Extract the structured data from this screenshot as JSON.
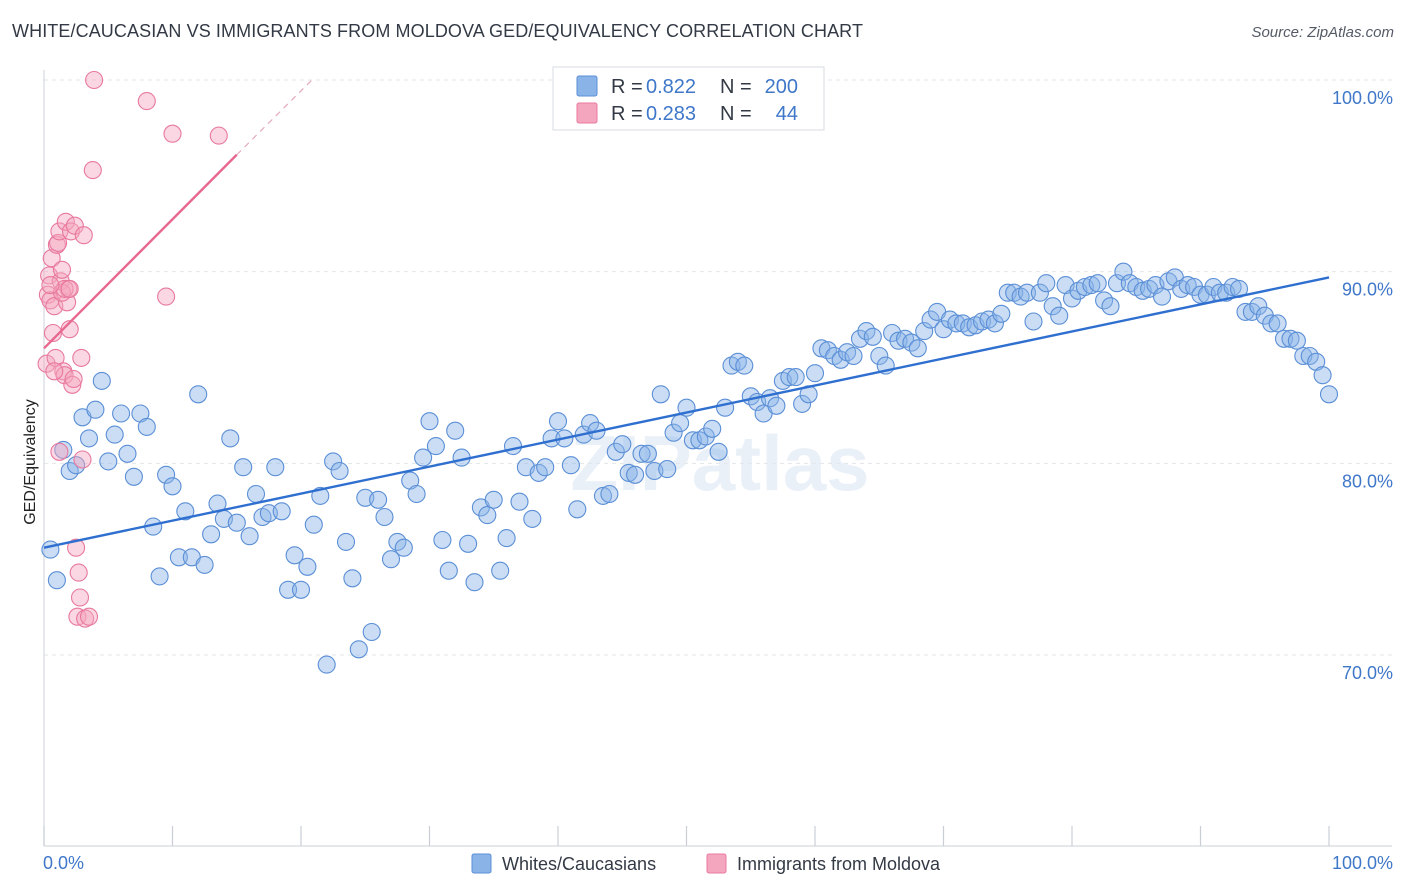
{
  "title": "WHITE/CAUCASIAN VS IMMIGRANTS FROM MOLDOVA GED/EQUIVALENCY CORRELATION CHART",
  "source": "Source: ZipAtlas.com",
  "watermark": "ZIPatlas",
  "legend": {
    "rows": [
      {
        "r_label": "R =",
        "r_value": "0.822",
        "n_label": "N =",
        "n_value": "200",
        "color": "#8ab4e8"
      },
      {
        "r_label": "R =",
        "r_value": "0.283",
        "n_label": "N =",
        "n_value": "44",
        "color": "#f4a6bf"
      }
    ]
  },
  "bottom_legend": {
    "items": [
      {
        "label": "Whites/Caucasians",
        "color": "#8ab4e8"
      },
      {
        "label": "Immigrants from Moldova",
        "color": "#f4a6bf"
      }
    ]
  },
  "chart_data": {
    "type": "scatter",
    "title": "WHITE/CAUCASIAN VS IMMIGRANTS FROM MOLDOVA GED/EQUIVALENCY CORRELATION CHART",
    "xlabel": "",
    "ylabel": "GED/Equivalency",
    "x_tick_labels": {
      "left": "0.0%",
      "right": "100.0%"
    },
    "y_tick_labels": [
      "100.0%",
      "90.0%",
      "80.0%",
      "70.0%"
    ],
    "y_ticks": [
      100,
      90,
      80,
      70
    ],
    "xlim": [
      0,
      100
    ],
    "ylim": [
      60.5,
      101.5
    ],
    "series": [
      {
        "name": "Whites/Caucasians",
        "color": "#8ab4e8",
        "stroke": "#5b8fd6",
        "trend": {
          "x": [
            0,
            100
          ],
          "y": [
            75.6,
            89.7
          ],
          "color": "#2f6fcf"
        },
        "points": [
          [
            0.5,
            75.5
          ],
          [
            1,
            73.9
          ],
          [
            1.5,
            80.7
          ],
          [
            2,
            79.6
          ],
          [
            2.5,
            79.9
          ],
          [
            3,
            82.4
          ],
          [
            3.5,
            81.3
          ],
          [
            4,
            82.8
          ],
          [
            4.5,
            84.3
          ],
          [
            5,
            80.1
          ],
          [
            5.5,
            81.5
          ],
          [
            6,
            82.6
          ],
          [
            6.5,
            80.5
          ],
          [
            7,
            79.3
          ],
          [
            7.5,
            82.6
          ],
          [
            8,
            81.9
          ],
          [
            8.5,
            76.7
          ],
          [
            9,
            74.1
          ],
          [
            9.5,
            79.4
          ],
          [
            10,
            78.8
          ],
          [
            10.5,
            75.1
          ],
          [
            11,
            77.5
          ],
          [
            11.5,
            75.1
          ],
          [
            12,
            83.6
          ],
          [
            12.5,
            74.7
          ],
          [
            13,
            76.3
          ],
          [
            13.5,
            77.9
          ],
          [
            14,
            77.1
          ],
          [
            14.5,
            81.3
          ],
          [
            15,
            76.9
          ],
          [
            15.5,
            79.8
          ],
          [
            16,
            76.2
          ],
          [
            16.5,
            78.4
          ],
          [
            17,
            77.2
          ],
          [
            17.5,
            77.4
          ],
          [
            18,
            79.8
          ],
          [
            18.5,
            77.5
          ],
          [
            19,
            73.4
          ],
          [
            19.5,
            75.2
          ],
          [
            20,
            73.4
          ],
          [
            20.5,
            74.6
          ],
          [
            21,
            76.8
          ],
          [
            21.5,
            78.3
          ],
          [
            22,
            69.5
          ],
          [
            22.5,
            80.1
          ],
          [
            23,
            79.6
          ],
          [
            23.5,
            75.9
          ],
          [
            24,
            74
          ],
          [
            24.5,
            70.3
          ],
          [
            25,
            78.2
          ],
          [
            25.5,
            71.2
          ],
          [
            26,
            78.1
          ],
          [
            26.5,
            77.2
          ],
          [
            27,
            75
          ],
          [
            27.5,
            75.9
          ],
          [
            28,
            75.6
          ],
          [
            28.5,
            79.1
          ],
          [
            29,
            78.4
          ],
          [
            29.5,
            80.3
          ],
          [
            30,
            82.2
          ],
          [
            30.5,
            80.9
          ],
          [
            31,
            76
          ],
          [
            31.5,
            74.4
          ],
          [
            32,
            81.7
          ],
          [
            32.5,
            80.3
          ],
          [
            33,
            75.8
          ],
          [
            33.5,
            73.8
          ],
          [
            34,
            77.7
          ],
          [
            34.5,
            77.3
          ],
          [
            35,
            78.1
          ],
          [
            35.5,
            74.4
          ],
          [
            36,
            76.1
          ],
          [
            36.5,
            80.9
          ],
          [
            37,
            78
          ],
          [
            37.5,
            79.8
          ],
          [
            38,
            77.1
          ],
          [
            38.5,
            79.5
          ],
          [
            39,
            79.8
          ],
          [
            39.5,
            81.3
          ],
          [
            40,
            82.2
          ],
          [
            40.5,
            81.3
          ],
          [
            41,
            79.9
          ],
          [
            41.5,
            77.6
          ],
          [
            42,
            81.5
          ],
          [
            42.5,
            82.1
          ],
          [
            43,
            81.7
          ],
          [
            43.5,
            78.3
          ],
          [
            44,
            78.4
          ],
          [
            44.5,
            80.6
          ],
          [
            45,
            81
          ],
          [
            45.5,
            79.5
          ],
          [
            46,
            79.4
          ],
          [
            46.5,
            80.5
          ],
          [
            47,
            80.5
          ],
          [
            47.5,
            79.6
          ],
          [
            48,
            83.6
          ],
          [
            48.5,
            79.7
          ],
          [
            49,
            81.6
          ],
          [
            49.5,
            82.1
          ],
          [
            50,
            82.9
          ],
          [
            50.5,
            81.2
          ],
          [
            51,
            81.2
          ],
          [
            51.5,
            81.4
          ],
          [
            52,
            81.8
          ],
          [
            52.5,
            80.6
          ],
          [
            53,
            82.9
          ],
          [
            53.5,
            85.1
          ],
          [
            54,
            85.3
          ],
          [
            54.5,
            85.1
          ],
          [
            55,
            83.5
          ],
          [
            55.5,
            83.2
          ],
          [
            56,
            82.6
          ],
          [
            56.5,
            83.4
          ],
          [
            57,
            83
          ],
          [
            57.5,
            84.3
          ],
          [
            58,
            84.5
          ],
          [
            58.5,
            84.5
          ],
          [
            59,
            83.1
          ],
          [
            59.5,
            83.6
          ],
          [
            60,
            84.7
          ],
          [
            60.5,
            86
          ],
          [
            61,
            85.9
          ],
          [
            61.5,
            85.6
          ],
          [
            62,
            85.4
          ],
          [
            62.5,
            85.8
          ],
          [
            63,
            85.6
          ],
          [
            63.5,
            86.5
          ],
          [
            64,
            86.9
          ],
          [
            64.5,
            86.6
          ],
          [
            65,
            85.6
          ],
          [
            65.5,
            85.1
          ],
          [
            66,
            86.8
          ],
          [
            66.5,
            86.4
          ],
          [
            67,
            86.5
          ],
          [
            67.5,
            86.3
          ],
          [
            68,
            86
          ],
          [
            68.5,
            86.9
          ],
          [
            69,
            87.5
          ],
          [
            69.5,
            87.9
          ],
          [
            70,
            87
          ],
          [
            70.5,
            87.5
          ],
          [
            71,
            87.3
          ],
          [
            71.5,
            87.3
          ],
          [
            72,
            87.1
          ],
          [
            72.5,
            87.2
          ],
          [
            73,
            87.4
          ],
          [
            73.5,
            87.5
          ],
          [
            74,
            87.3
          ],
          [
            74.5,
            87.8
          ],
          [
            75,
            88.9
          ],
          [
            75.5,
            88.9
          ],
          [
            76,
            88.7
          ],
          [
            76.5,
            88.9
          ],
          [
            77,
            87.4
          ],
          [
            77.5,
            88.9
          ],
          [
            78,
            89.4
          ],
          [
            78.5,
            88.2
          ],
          [
            79,
            87.7
          ],
          [
            79.5,
            89.3
          ],
          [
            80,
            88.6
          ],
          [
            80.5,
            89
          ],
          [
            81,
            89.2
          ],
          [
            81.5,
            89.3
          ],
          [
            82,
            89.4
          ],
          [
            82.5,
            88.5
          ],
          [
            83,
            88.2
          ],
          [
            83.5,
            89.4
          ],
          [
            84,
            90
          ],
          [
            84.5,
            89.4
          ],
          [
            85,
            89.2
          ],
          [
            85.5,
            89
          ],
          [
            86,
            89.1
          ],
          [
            86.5,
            89.3
          ],
          [
            87,
            88.7
          ],
          [
            87.5,
            89.5
          ],
          [
            88,
            89.7
          ],
          [
            88.5,
            89.1
          ],
          [
            89,
            89.3
          ],
          [
            89.5,
            89.2
          ],
          [
            90,
            88.8
          ],
          [
            90.5,
            88.8
          ],
          [
            91,
            89.2
          ],
          [
            91.5,
            88.9
          ],
          [
            92,
            88.9
          ],
          [
            92.5,
            89.2
          ],
          [
            93,
            89.1
          ],
          [
            93.5,
            87.9
          ],
          [
            94,
            87.9
          ],
          [
            94.5,
            88.2
          ],
          [
            95,
            87.7
          ],
          [
            95.5,
            87.3
          ],
          [
            96,
            87.3
          ],
          [
            96.5,
            86.5
          ],
          [
            97,
            86.5
          ],
          [
            97.5,
            86.4
          ],
          [
            98,
            85.6
          ],
          [
            98.5,
            85.6
          ],
          [
            99,
            85.3
          ],
          [
            99.5,
            84.6
          ],
          [
            100,
            83.6
          ]
        ]
      },
      {
        "name": "Immigrants from Moldova",
        "color": "#f4a6bf",
        "stroke": "#e8799e",
        "trend": {
          "x": [
            0,
            15
          ],
          "y": [
            86,
            96.1
          ],
          "dash_to": {
            "x": 21,
            "y": 100.1
          },
          "color": "#e8678f"
        },
        "points": [
          [
            0.2,
            85.2
          ],
          [
            0.3,
            88.8
          ],
          [
            0.4,
            89.8
          ],
          [
            0.5,
            88.5
          ],
          [
            0.6,
            90.7
          ],
          [
            0.7,
            86.8
          ],
          [
            0.8,
            88.2
          ],
          [
            0.9,
            85.5
          ],
          [
            1,
            91.4
          ],
          [
            1.1,
            91.5
          ],
          [
            1.2,
            92.1
          ],
          [
            1.3,
            89.5
          ],
          [
            1.4,
            90.1
          ],
          [
            1.5,
            84.8
          ],
          [
            1.6,
            84.6
          ],
          [
            1.7,
            92.6
          ],
          [
            1.8,
            88.4
          ],
          [
            1.9,
            89.1
          ],
          [
            2,
            87
          ],
          [
            2.1,
            92.1
          ],
          [
            2.2,
            84.1
          ],
          [
            2.3,
            84.4
          ],
          [
            2.4,
            92.4
          ],
          [
            2.5,
            75.6
          ],
          [
            2.6,
            72
          ],
          [
            2.7,
            74.3
          ],
          [
            2.8,
            73
          ],
          [
            2.9,
            85.5
          ],
          [
            3,
            80.2
          ],
          [
            3.1,
            91.9
          ],
          [
            3.2,
            71.9
          ],
          [
            1.2,
            80.6
          ],
          [
            1.4,
            88.9
          ],
          [
            1.6,
            89.1
          ],
          [
            2,
            89.1
          ],
          [
            3.5,
            72
          ],
          [
            3.9,
            100
          ],
          [
            3.8,
            95.3
          ],
          [
            8,
            98.9
          ],
          [
            10,
            97.2
          ],
          [
            13.6,
            97.1
          ],
          [
            9.5,
            88.7
          ],
          [
            0.5,
            89.3
          ],
          [
            0.8,
            84.8
          ]
        ]
      }
    ]
  }
}
